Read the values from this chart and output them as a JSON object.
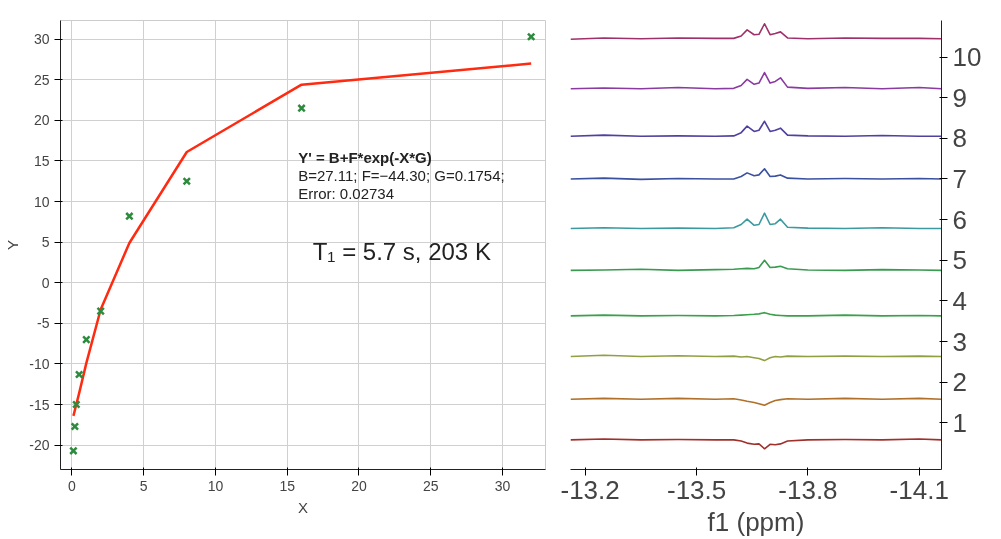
{
  "chart_data": [
    {
      "type": "scatter",
      "xlabel": "X",
      "ylabel": "Y",
      "xlim": [
        -0.8,
        33
      ],
      "ylim": [
        -23,
        32.3
      ],
      "xticks": [
        0,
        5,
        10,
        15,
        20,
        25,
        30
      ],
      "yticks": [
        -20,
        -15,
        -10,
        -5,
        0,
        5,
        10,
        15,
        20,
        25,
        30
      ],
      "grid": true,
      "x": [
        0.1,
        0.2,
        0.3,
        0.5,
        1,
        2,
        4,
        8,
        16,
        32
      ],
      "annotations": [
        "Y' = B+F*exp(-X*G)",
        "B=27.11; F=−44.30; G=0.1754;",
        "Error: 0.02734",
        "T₁ =  5.7 s, 203 K"
      ],
      "series": [
        {
          "color": "#2e8b3e",
          "marker": "cross",
          "values": [
            -20.7,
            -17.7,
            -15,
            -11.3,
            -7,
            -3.5,
            8.2,
            12.5,
            21.5,
            30.3
          ]
        },
        {
          "type": "line",
          "color": "#ff2a10",
          "x": [
            0.1,
            0.2,
            0.5,
            1,
            2,
            4,
            8,
            16,
            32
          ],
          "values": [
            -16.4,
            -15.7,
            -13.6,
            -9.9,
            -3.3,
            4.9,
            16.1,
            24.4,
            27
          ]
        }
      ]
    },
    {
      "type": "line",
      "xlabel": "f1 (ppm)",
      "xlim": [
        -13.16,
        -14.16
      ],
      "ylim": [
        -0.15,
        10.9
      ],
      "xticks": [
        -13.2,
        -13.5,
        -13.8,
        -14.1
      ],
      "yticks": [
        1,
        2,
        3,
        4,
        5,
        6,
        7,
        8,
        9,
        10
      ],
      "x": [
        -13.16,
        -13.25,
        -13.35,
        -13.45,
        -13.55,
        -13.6,
        -13.62,
        -13.636,
        -13.655,
        -13.668,
        -13.683,
        -13.698,
        -13.712,
        -13.726,
        -13.745,
        -13.8,
        -13.9,
        -14.0,
        -14.1,
        -14.16
      ],
      "series": [
        {
          "color": "#a0306a",
          "values": [
            10.44,
            10.47,
            10.45,
            10.47,
            10.46,
            10.46,
            10.52,
            10.67,
            10.55,
            10.56,
            10.82,
            10.55,
            10.58,
            10.62,
            10.47,
            10.45,
            10.47,
            10.46,
            10.46,
            10.45
          ]
        },
        {
          "color": "#8a3aa0",
          "values": [
            9.22,
            9.24,
            9.22,
            9.25,
            9.22,
            9.23,
            9.3,
            9.45,
            9.33,
            9.36,
            9.62,
            9.36,
            9.4,
            9.49,
            9.26,
            9.23,
            9.25,
            9.22,
            9.25,
            9.22
          ]
        },
        {
          "color": "#5040a0",
          "values": [
            8.05,
            8.08,
            8.05,
            8.06,
            8.05,
            8.06,
            8.14,
            8.3,
            8.17,
            8.2,
            8.42,
            8.17,
            8.2,
            8.25,
            8.08,
            8.06,
            8.05,
            8.07,
            8.05,
            8.05
          ]
        },
        {
          "color": "#3a50a0",
          "values": [
            7.0,
            7.02,
            6.99,
            7.01,
            7.0,
            7.0,
            7.06,
            7.15,
            7.08,
            7.1,
            7.25,
            7.06,
            7.07,
            7.1,
            7.02,
            7.0,
            7.01,
            7.0,
            7.01,
            7.0
          ]
        },
        {
          "color": "#3a9aa0",
          "values": [
            5.78,
            5.8,
            5.78,
            5.79,
            5.78,
            5.8,
            5.88,
            6.01,
            5.86,
            5.88,
            6.16,
            5.88,
            5.9,
            6.01,
            5.81,
            5.79,
            5.78,
            5.8,
            5.78,
            5.78
          ]
        },
        {
          "color": "#3a9a50",
          "values": [
            4.75,
            4.76,
            4.78,
            4.75,
            4.77,
            4.78,
            4.79,
            4.8,
            4.79,
            4.82,
            5.0,
            4.82,
            4.83,
            4.85,
            4.79,
            4.76,
            4.75,
            4.77,
            4.76,
            4.75
          ]
        },
        {
          "color": "#3aa04a",
          "values": [
            3.63,
            3.65,
            3.63,
            3.64,
            3.63,
            3.64,
            3.65,
            3.66,
            3.67,
            3.68,
            3.71,
            3.67,
            3.65,
            3.64,
            3.63,
            3.63,
            3.65,
            3.63,
            3.64,
            3.63
          ]
        },
        {
          "color": "#90a040",
          "values": [
            2.63,
            2.66,
            2.63,
            2.65,
            2.63,
            2.64,
            2.62,
            2.63,
            2.6,
            2.58,
            2.53,
            2.6,
            2.63,
            2.62,
            2.64,
            2.63,
            2.64,
            2.63,
            2.64,
            2.63
          ]
        },
        {
          "color": "#b0702a",
          "values": [
            1.58,
            1.6,
            1.58,
            1.6,
            1.58,
            1.59,
            1.56,
            1.53,
            1.5,
            1.47,
            1.43,
            1.5,
            1.55,
            1.57,
            1.59,
            1.58,
            1.6,
            1.58,
            1.6,
            1.58
          ]
        },
        {
          "color": "#a0302a",
          "values": [
            0.58,
            0.6,
            0.58,
            0.59,
            0.58,
            0.58,
            0.55,
            0.5,
            0.47,
            0.48,
            0.36,
            0.47,
            0.46,
            0.48,
            0.55,
            0.58,
            0.59,
            0.58,
            0.6,
            0.58
          ]
        }
      ]
    }
  ]
}
